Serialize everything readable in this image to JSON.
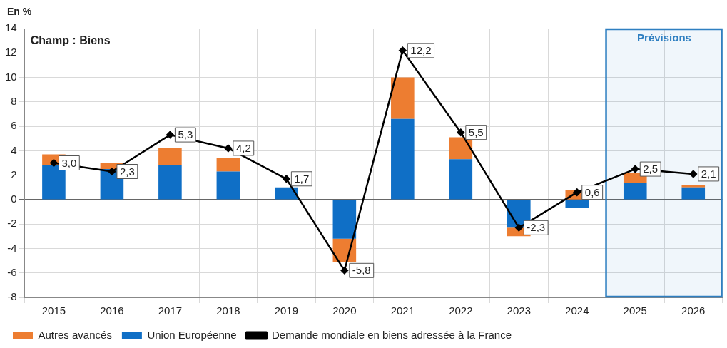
{
  "chart_data": {
    "type": "bar",
    "stacked": true,
    "ylabel": "En %",
    "categories": [
      "2015",
      "2016",
      "2017",
      "2018",
      "2019",
      "2020",
      "2021",
      "2022",
      "2023",
      "2024",
      "2025",
      "2026"
    ],
    "series": [
      {
        "name": "Union Européenne",
        "color": "#0f6fc6",
        "values": [
          2.8,
          2.5,
          2.8,
          2.3,
          1.0,
          -3.2,
          6.6,
          3.3,
          -2.3,
          -0.7,
          1.4,
          1.0
        ]
      },
      {
        "name": "Autres avancés",
        "color": "#ed7d31",
        "values": [
          0.9,
          0.5,
          1.4,
          1.1,
          0,
          -1.9,
          3.4,
          1.8,
          -0.7,
          0.8,
          0.8,
          0.2
        ]
      },
      {
        "name": "Demande mondiale en biens adressée à la France",
        "type": "line",
        "color": "#000000",
        "marker": "diamond",
        "values": [
          3.0,
          2.3,
          5.3,
          4.2,
          1.7,
          -5.8,
          12.2,
          5.5,
          -2.3,
          0.6,
          2.5,
          2.1
        ],
        "value_labels": [
          "3,0",
          "2,3",
          "5,3",
          "4,2",
          "1,7",
          "-5,8",
          "12,2",
          "5,5",
          "-2,3",
          "0,6",
          "2,5",
          "2,1"
        ]
      }
    ],
    "ylim": [
      -8,
      14
    ],
    "yticks": [
      -8,
      -6,
      -4,
      -2,
      0,
      2,
      4,
      6,
      8,
      10,
      12,
      14
    ],
    "grid": true,
    "legend": "bottom",
    "bands": [
      {
        "axis": "x",
        "from": "2025",
        "to": "2026",
        "label": "Prévisions",
        "color": "#2e7fc1"
      }
    ],
    "annotations": [
      "Champ : Biens"
    ]
  }
}
